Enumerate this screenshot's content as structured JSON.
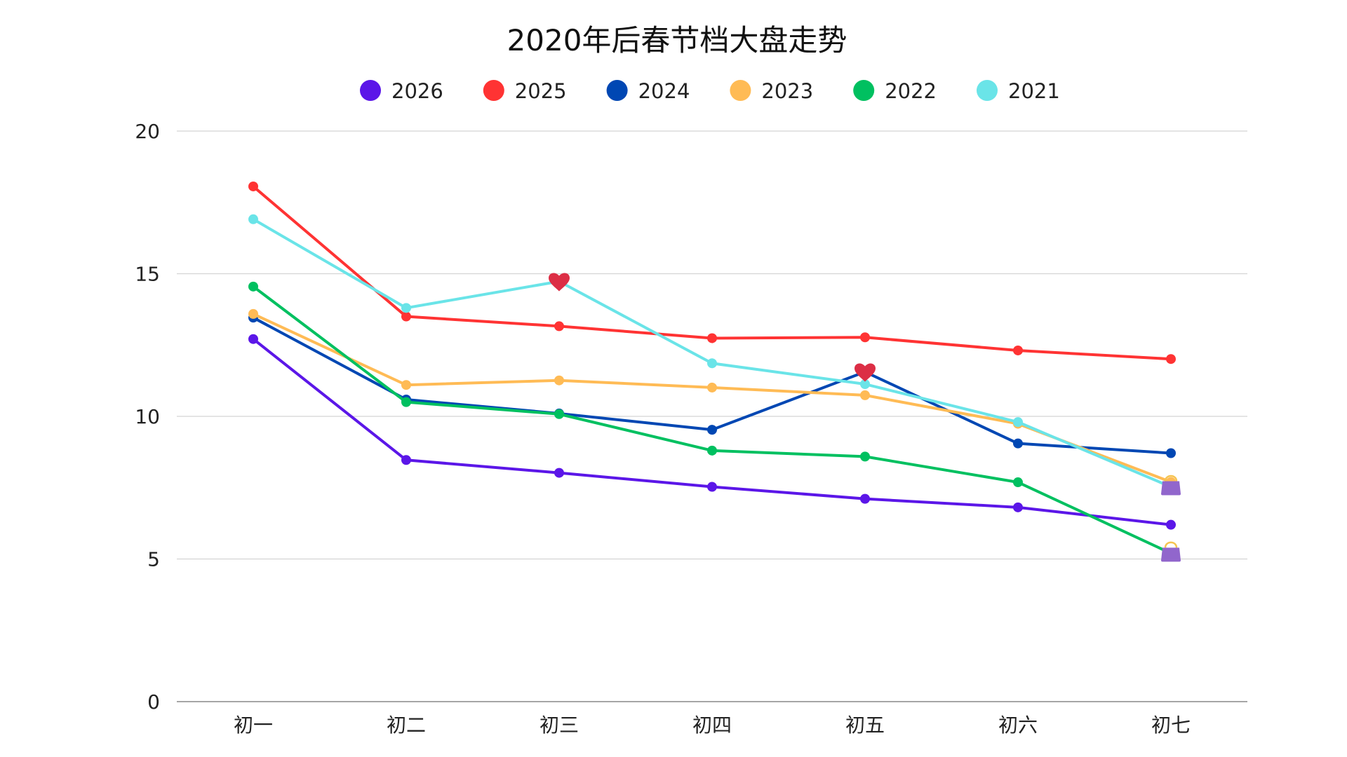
{
  "chart_data": {
    "type": "line",
    "title": "2020年后春节档大盘走势",
    "xlabel": "",
    "ylabel": "",
    "categories": [
      "初一",
      "初二",
      "初三",
      "初四",
      "初五",
      "初六",
      "初七"
    ],
    "ylim": [
      0,
      20
    ],
    "yticks": [
      0,
      5,
      10,
      15,
      20
    ],
    "grid": true,
    "legend_position": "top",
    "series": [
      {
        "name": "2026",
        "color": "#5b16e8",
        "values": [
          12.71,
          8.47,
          8.02,
          7.53,
          7.11,
          6.81,
          6.2
        ]
      },
      {
        "name": "2025",
        "color": "#ff3333",
        "values": [
          18.06,
          13.5,
          13.16,
          12.74,
          12.77,
          12.31,
          12.01
        ]
      },
      {
        "name": "2024",
        "color": "#0047b3",
        "values": [
          13.46,
          10.59,
          10.1,
          9.53,
          11.56,
          9.05,
          8.71
        ]
      },
      {
        "name": "2023",
        "color": "#ffbb55",
        "values": [
          13.59,
          11.1,
          11.26,
          11.01,
          10.74,
          9.74,
          7.7
        ]
      },
      {
        "name": "2022",
        "color": "#00c060",
        "values": [
          14.55,
          10.5,
          10.08,
          8.8,
          8.59,
          7.69,
          5.2
        ]
      },
      {
        "name": "2021",
        "color": "#6ae4e8",
        "values": [
          16.91,
          13.8,
          14.73,
          11.86,
          11.13,
          9.8,
          7.53
        ]
      }
    ],
    "annotations": [
      {
        "series": "2021",
        "category": "初三",
        "icon": "heart-icon",
        "color": "#dc2e45"
      },
      {
        "series": "2024",
        "category": "初五",
        "icon": "heart-icon",
        "color": "#dc2e45"
      },
      {
        "series": "2021",
        "category": "初七",
        "icon": "handbag-icon",
        "color": "#9166cc"
      },
      {
        "series": "2022",
        "category": "初七",
        "icon": "handbag-icon",
        "color": "#9166cc"
      }
    ]
  }
}
